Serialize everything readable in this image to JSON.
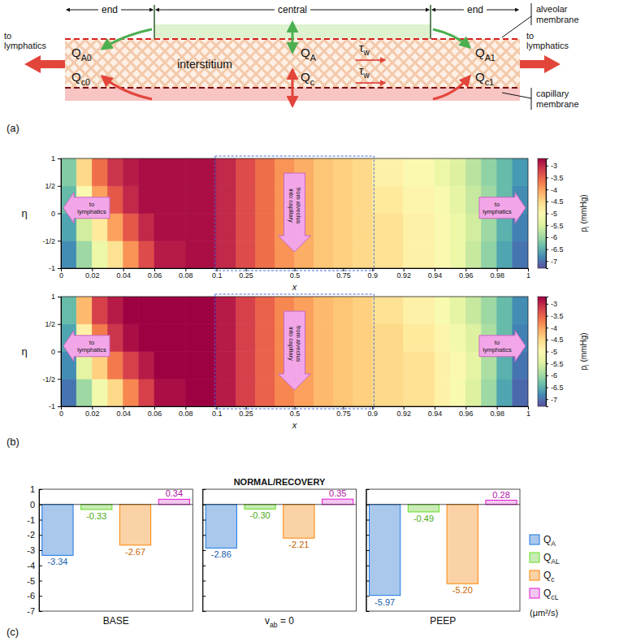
{
  "panel_labels": [
    "(a)",
    "(b)",
    "(c)"
  ],
  "panel_a": {
    "regions": [
      "end",
      "central",
      "end"
    ],
    "alveolar_membrane": "alveolar membrane",
    "capillary_membrane": "capillary membrane",
    "interstitium": "interstitium",
    "lymphatics": [
      "to lymphatics",
      "to lymphatics"
    ],
    "flows": [
      {
        "text": "Q",
        "sub": "A0"
      },
      {
        "text": "Q",
        "sub": "c0"
      },
      {
        "text": "Q",
        "sub": "A"
      },
      {
        "text": "Q",
        "sub": "c"
      },
      {
        "text": "Q",
        "sub": "A1"
      },
      {
        "text": "Q",
        "sub": "c1"
      }
    ],
    "shear": [
      {
        "text": "τ",
        "sub": "w"
      },
      {
        "text": "τ",
        "sub": "w"
      }
    ]
  },
  "panel_b": {
    "type": "heatmap",
    "xlabel": "x",
    "ylabel": "η",
    "xlim": [
      0,
      1
    ],
    "x_breaks": [
      0.1,
      0.9
    ],
    "xticks": [
      0,
      0.02,
      0.04,
      0.06,
      0.08,
      0.1,
      0.25,
      0.5,
      0.75,
      0.9,
      0.92,
      0.94,
      0.96,
      0.98,
      1
    ],
    "ylim": [
      -1,
      1
    ],
    "yticks": [
      -1,
      {
        "value": -0.5,
        "label": "-1/2"
      },
      0,
      {
        "value": 0.5,
        "label": "1/2"
      },
      1
    ],
    "annotations": [
      "to lymphatics",
      "from alveolus into capillary",
      "to lymphatics"
    ],
    "x_edges": [
      0,
      0.01,
      0.02,
      0.03,
      0.04,
      0.05,
      0.06,
      0.08,
      0.1,
      0.2,
      0.3,
      0.4,
      0.5,
      0.6,
      0.7,
      0.8,
      0.9,
      0.92,
      0.94,
      0.95,
      0.96,
      0.97,
      0.98,
      0.99,
      1
    ],
    "eta_edges": [
      -1,
      -0.5,
      0,
      0.5,
      1
    ],
    "colorbar": {
      "label": {
        "text": "p",
        "sub": "i",
        "tail": " (mmHg)"
      },
      "range": [
        -7.3,
        -2.7
      ],
      "ticks": [
        -7,
        -6.5,
        -6,
        -5.5,
        -5,
        -4.5,
        -4,
        -3.5,
        -3
      ]
    },
    "plots": [
      {
        "cells": [
          [
            -6.8,
            -6.0,
            -5.3,
            -4.6,
            -3.9,
            -3.3,
            -2.9,
            -2.8,
            -3.0,
            -3.3,
            -3.6,
            -3.9,
            -4.1,
            -4.3,
            -4.4,
            -4.5,
            -4.6,
            -4.8,
            -5.0,
            -5.3,
            -5.7,
            -6.1,
            -6.6,
            -7.0
          ],
          [
            -6.6,
            -5.6,
            -4.7,
            -4.0,
            -3.4,
            -3.0,
            -2.8,
            -2.8,
            -3.0,
            -3.3,
            -3.6,
            -3.9,
            -4.1,
            -4.3,
            -4.4,
            -4.5,
            -4.6,
            -4.8,
            -5.0,
            -5.3,
            -5.6,
            -6.0,
            -6.5,
            -6.9
          ],
          [
            -6.4,
            -5.0,
            -4.0,
            -3.4,
            -3.0,
            -2.8,
            -2.8,
            -2.8,
            -3.0,
            -3.3,
            -3.6,
            -3.9,
            -4.1,
            -4.3,
            -4.4,
            -4.5,
            -4.7,
            -4.9,
            -5.1,
            -5.4,
            -5.7,
            -6.0,
            -6.4,
            -6.8
          ],
          [
            -6.2,
            -4.5,
            -3.6,
            -3.1,
            -2.9,
            -2.8,
            -2.8,
            -2.8,
            -3.0,
            -3.3,
            -3.6,
            -3.9,
            -4.1,
            -4.3,
            -4.4,
            -4.5,
            -4.8,
            -5.0,
            -5.3,
            -5.5,
            -5.8,
            -6.1,
            -6.4,
            -6.7
          ]
        ]
      },
      {
        "cells": [
          [
            -7.0,
            -6.0,
            -5.2,
            -4.5,
            -3.8,
            -3.2,
            -2.8,
            -2.7,
            -2.9,
            -3.2,
            -3.5,
            -3.8,
            -4.0,
            -4.2,
            -4.3,
            -4.4,
            -4.5,
            -4.6,
            -4.8,
            -5.1,
            -5.5,
            -6.0,
            -6.6,
            -7.1
          ],
          [
            -6.8,
            -5.4,
            -4.4,
            -3.7,
            -3.2,
            -2.9,
            -2.7,
            -2.7,
            -2.9,
            -3.2,
            -3.5,
            -3.8,
            -4.0,
            -4.2,
            -4.3,
            -4.4,
            -4.5,
            -4.6,
            -4.8,
            -5.0,
            -5.4,
            -5.9,
            -6.5,
            -7.0
          ],
          [
            -6.6,
            -4.8,
            -3.7,
            -3.1,
            -2.8,
            -2.7,
            -2.7,
            -2.7,
            -2.9,
            -3.2,
            -3.5,
            -3.8,
            -4.0,
            -4.2,
            -4.3,
            -4.4,
            -4.5,
            -4.7,
            -4.9,
            -5.2,
            -5.5,
            -5.9,
            -6.4,
            -6.9
          ],
          [
            -6.4,
            -4.2,
            -3.2,
            -2.9,
            -2.7,
            -2.7,
            -2.7,
            -2.7,
            -2.9,
            -3.2,
            -3.5,
            -3.8,
            -4.0,
            -4.2,
            -4.3,
            -4.4,
            -4.6,
            -4.8,
            -5.1,
            -5.4,
            -5.7,
            -6.0,
            -6.4,
            -6.8
          ]
        ]
      }
    ]
  },
  "chart_data": {
    "type": "bar",
    "title": "NORMAL/RECOVERY",
    "categories": [
      {
        "text": "BASE"
      },
      {
        "text": "v",
        "sub": "ab",
        "tail": " = 0"
      },
      {
        "text": "PEEP"
      }
    ],
    "series": [
      {
        "name": {
          "text": "Q",
          "sub": "A"
        },
        "color": "#a9c8ec",
        "values": [
          -3.34,
          -2.86,
          -5.97
        ],
        "value_labels": [
          "-3.34",
          "-2.86",
          "-5.97"
        ]
      },
      {
        "name": {
          "text": "Q",
          "sub": "AL"
        },
        "color": "#c8ecb4",
        "values": [
          -0.33,
          -0.3,
          -0.49
        ],
        "value_labels": [
          "-0.33",
          "-0.30",
          "-0.49"
        ]
      },
      {
        "name": {
          "text": "Q",
          "sub": "c"
        },
        "color": "#fbd2a6",
        "values": [
          -2.67,
          -2.21,
          -5.2
        ],
        "value_labels": [
          "-2.67",
          "-2.21",
          "-5.20"
        ]
      },
      {
        "name": {
          "text": "Q",
          "sub": "cL"
        },
        "color": "#f3c6f0",
        "values": [
          0.34,
          0.35,
          0.28
        ],
        "value_labels": [
          "0.34",
          "0.35",
          "0.28"
        ]
      }
    ],
    "ylim": [
      -7,
      1
    ],
    "yticks": [
      -7,
      -6,
      -5,
      -4,
      -3,
      -2,
      -1,
      0,
      1
    ],
    "data_labels": true,
    "legend": "right",
    "unit_label": "(μm²/s)"
  }
}
